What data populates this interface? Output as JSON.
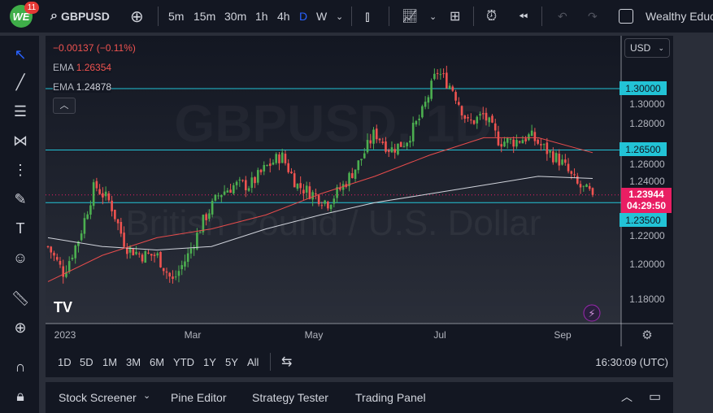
{
  "topbar": {
    "logo": "WE",
    "notifications": "11",
    "symbol": "GBPUSD",
    "intervals": [
      "5m",
      "15m",
      "30m",
      "1h",
      "4h",
      "D",
      "W"
    ],
    "active_interval": "D",
    "account": "Wealthy Educ"
  },
  "legend": {
    "change": "−0.00137 (−0.11%)",
    "ema1_label": "EMA",
    "ema1_value": "1.26354",
    "ema2_label": "EMA",
    "ema2_value": "1.24878"
  },
  "currency": "USD",
  "watermark": {
    "symbol": "GBPUSD, 1D",
    "name": "British Pound / U.S. Dollar"
  },
  "colors": {
    "up": "#4caf50",
    "down": "#ef5350",
    "level": "#22c3d6",
    "ema_fast": "#e84c4c",
    "ema_slow": "#d1d4dc",
    "last_price": "#e91e63"
  },
  "chart_data": {
    "type": "candlestick",
    "price_axis": [
      "1.30000",
      "1.28000",
      "1.26000",
      "1.24000",
      "1.22000",
      "1.20000",
      "1.18000"
    ],
    "time_axis": [
      "2023",
      "Mar",
      "May",
      "Jul",
      "Sep"
    ],
    "levels": [
      "1.30000",
      "1.26500",
      "1.23500"
    ],
    "last_price": "1.23944",
    "countdown": "04:29:50",
    "approx_close_path": [
      [
        "Jan",
        1.21
      ],
      [
        "Jan",
        1.195
      ],
      [
        "Jan",
        1.215
      ],
      [
        "Jan",
        1.245
      ],
      [
        "Feb",
        1.235
      ],
      [
        "Feb",
        1.21
      ],
      [
        "Feb",
        1.205
      ],
      [
        "Mar",
        1.205
      ],
      [
        "Mar",
        1.19
      ],
      [
        "Mar",
        1.205
      ],
      [
        "Mar",
        1.225
      ],
      [
        "Apr",
        1.24
      ],
      [
        "Apr",
        1.245
      ],
      [
        "Apr",
        1.245
      ],
      [
        "May",
        1.255
      ],
      [
        "May",
        1.262
      ],
      [
        "May",
        1.245
      ],
      [
        "May",
        1.24
      ],
      [
        "Jun",
        1.235
      ],
      [
        "Jun",
        1.245
      ],
      [
        "Jun",
        1.258
      ],
      [
        "Jun",
        1.275
      ],
      [
        "Jun",
        1.265
      ],
      [
        "Jul",
        1.27
      ],
      [
        "Jul",
        1.285
      ],
      [
        "Jul",
        1.31
      ],
      [
        "Jul",
        1.3
      ],
      [
        "Jul",
        1.28
      ],
      [
        "Aug",
        1.285
      ],
      [
        "Aug",
        1.27
      ],
      [
        "Aug",
        1.27
      ],
      [
        "Aug",
        1.273
      ],
      [
        "Aug",
        1.265
      ],
      [
        "Sep",
        1.258
      ],
      [
        "Sep",
        1.245
      ],
      [
        "Sep",
        1.2394
      ]
    ],
    "ema_fast": [
      1.19,
      1.205,
      1.215,
      1.22,
      1.228,
      1.24,
      1.25,
      1.262,
      1.272,
      1.272,
      1.2635
    ],
    "ema_slow": [
      1.215,
      1.21,
      1.208,
      1.21,
      1.22,
      1.228,
      1.235,
      1.24,
      1.245,
      1.25,
      1.2488
    ]
  },
  "time": "16:30:09 (UTC)",
  "ranges": [
    "1D",
    "5D",
    "1M",
    "3M",
    "6M",
    "YTD",
    "1Y",
    "5Y",
    "All"
  ],
  "bottom_tabs": [
    "Stock Screener",
    "Pine Editor",
    "Strategy Tester",
    "Trading Panel"
  ]
}
